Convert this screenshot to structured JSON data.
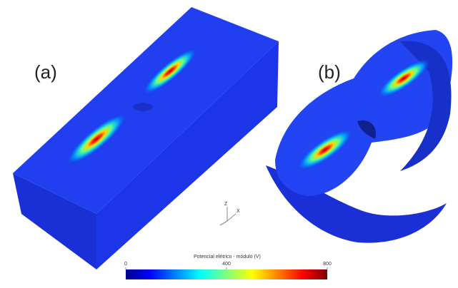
{
  "panels": [
    {
      "label": "(a)"
    },
    {
      "label": "(b)"
    }
  ],
  "triad": {
    "labels": [
      "Z",
      "X"
    ]
  },
  "colorbar": {
    "title": "Potencial elétrico - módulo (V)",
    "range": [
      0,
      800
    ],
    "ticks": [
      0,
      400,
      800
    ]
  }
}
